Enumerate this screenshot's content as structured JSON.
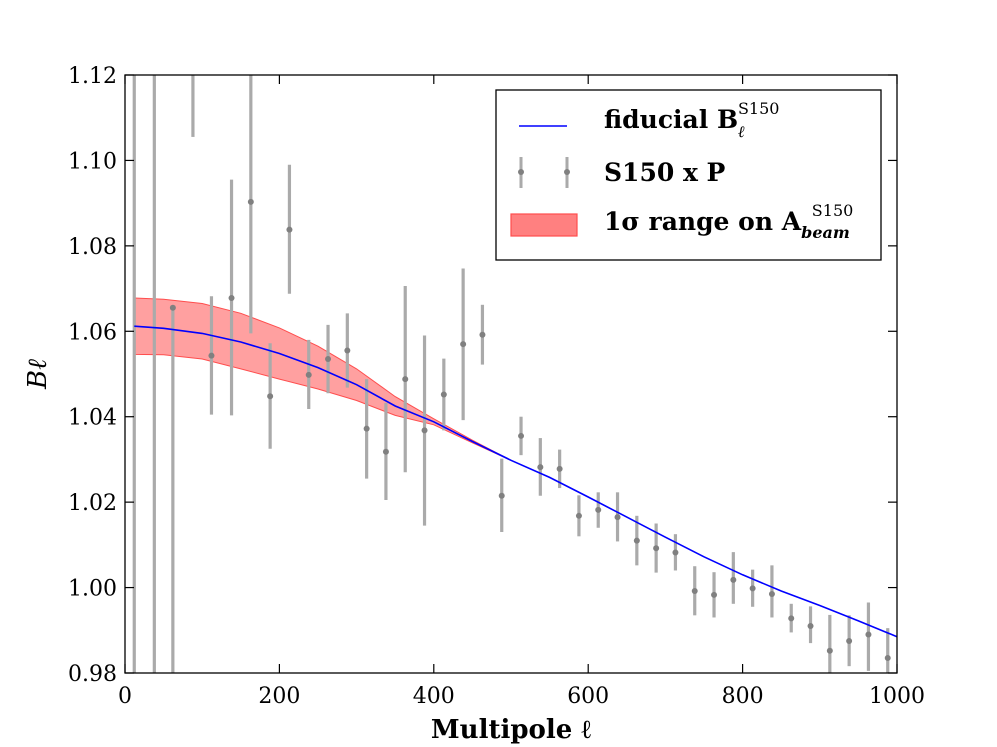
{
  "chart_data": {
    "type": "line",
    "xlabel": "Multipole ℓ",
    "ylabel": "Bℓ",
    "xlim": [
      0,
      1000
    ],
    "ylim": [
      0.98,
      1.12
    ],
    "xticks": [
      0,
      200,
      400,
      600,
      800,
      1000
    ],
    "xtick_labels": [
      "0",
      "200",
      "400",
      "600",
      "800",
      "1000"
    ],
    "yticks": [
      0.98,
      1.0,
      1.02,
      1.04,
      1.06,
      1.08,
      1.1,
      1.12
    ],
    "ytick_labels": [
      "0.98",
      "1.00",
      "1.02",
      "1.04",
      "1.06",
      "1.08",
      "1.10",
      "1.12"
    ],
    "grid": false,
    "legend_position": "top-right",
    "legend": {
      "fiducial": "fiducial B",
      "fiducial_sub": "ℓ",
      "fiducial_sup": "S150",
      "data": "S150 x P",
      "band": "1σ range on A",
      "band_sub": "beam",
      "band_sup": "S150"
    },
    "colors": {
      "fiducial": "#0000ff",
      "data": "#808080",
      "band_fill": "#ff8080",
      "band_edge": "#ff4d4d"
    },
    "fiducial": {
      "x": [
        12,
        50,
        100,
        150,
        200,
        250,
        300,
        350,
        400,
        450,
        500,
        550,
        600,
        650,
        700,
        750,
        800,
        850,
        900,
        950,
        1000
      ],
      "y": [
        1.0612,
        1.0607,
        1.0595,
        1.0575,
        1.0548,
        1.0515,
        1.0475,
        1.0425,
        1.0388,
        1.0342,
        1.0298,
        1.0258,
        1.0212,
        1.0165,
        1.0118,
        1.0072,
        1.003,
        0.9992,
        0.9958,
        0.9922,
        0.9885
      ]
    },
    "band": {
      "x": [
        12,
        50,
        100,
        150,
        200,
        250,
        300,
        350,
        400,
        450,
        500
      ],
      "upper": [
        1.0678,
        1.0675,
        1.0665,
        1.0642,
        1.0608,
        1.0565,
        1.0512,
        1.0447,
        1.0395,
        1.0345,
        1.0298
      ],
      "lower": [
        1.0546,
        1.0545,
        1.0535,
        1.0512,
        1.0488,
        1.0465,
        1.0438,
        1.0403,
        1.0381,
        1.0339,
        1.0298
      ]
    },
    "data_points": [
      {
        "x": 12,
        "y": 1.12,
        "lo": 0.98,
        "hi": 1.12
      },
      {
        "x": 38,
        "y": 1.12,
        "lo": 0.98,
        "hi": 1.12
      },
      {
        "x": 62,
        "y": 1.0655,
        "lo": 0.98,
        "hi": 1.0655
      },
      {
        "x": 88,
        "y": 1.12,
        "lo": 1.1055,
        "hi": 1.12
      },
      {
        "x": 112,
        "y": 1.0543,
        "lo": 1.0405,
        "hi": 1.0682
      },
      {
        "x": 138,
        "y": 1.0678,
        "lo": 1.0403,
        "hi": 1.0955
      },
      {
        "x": 163,
        "y": 1.0903,
        "lo": 1.0595,
        "hi": 1.12
      },
      {
        "x": 188,
        "y": 1.0448,
        "lo": 1.0325,
        "hi": 1.0572
      },
      {
        "x": 213,
        "y": 1.0838,
        "lo": 1.0688,
        "hi": 1.099
      },
      {
        "x": 238,
        "y": 1.0498,
        "lo": 1.0418,
        "hi": 1.058
      },
      {
        "x": 263,
        "y": 1.0535,
        "lo": 1.0455,
        "hi": 1.0615
      },
      {
        "x": 288,
        "y": 1.0555,
        "lo": 1.0468,
        "hi": 1.0642
      },
      {
        "x": 313,
        "y": 1.0372,
        "lo": 1.0255,
        "hi": 1.0488
      },
      {
        "x": 338,
        "y": 1.0318,
        "lo": 1.0205,
        "hi": 1.0432
      },
      {
        "x": 363,
        "y": 1.0488,
        "lo": 1.027,
        "hi": 1.0706
      },
      {
        "x": 388,
        "y": 1.0368,
        "lo": 1.0145,
        "hi": 1.059
      },
      {
        "x": 413,
        "y": 1.0452,
        "lo": 1.0368,
        "hi": 1.0536
      },
      {
        "x": 438,
        "y": 1.057,
        "lo": 1.0392,
        "hi": 1.0747
      },
      {
        "x": 463,
        "y": 1.0592,
        "lo": 1.0522,
        "hi": 1.0662
      },
      {
        "x": 488,
        "y": 1.0215,
        "lo": 1.013,
        "hi": 1.0302
      },
      {
        "x": 513,
        "y": 1.0355,
        "lo": 1.031,
        "hi": 1.04
      },
      {
        "x": 538,
        "y": 1.0282,
        "lo": 1.0215,
        "hi": 1.035
      },
      {
        "x": 563,
        "y": 1.0278,
        "lo": 1.0233,
        "hi": 1.0323
      },
      {
        "x": 588,
        "y": 1.0168,
        "lo": 1.012,
        "hi": 1.0216
      },
      {
        "x": 613,
        "y": 1.0182,
        "lo": 1.014,
        "hi": 1.0223
      },
      {
        "x": 638,
        "y": 1.0165,
        "lo": 1.0108,
        "hi": 1.0223
      },
      {
        "x": 663,
        "y": 1.011,
        "lo": 1.0052,
        "hi": 1.0168
      },
      {
        "x": 688,
        "y": 1.0092,
        "lo": 1.0035,
        "hi": 1.015
      },
      {
        "x": 713,
        "y": 1.0082,
        "lo": 1.004,
        "hi": 1.0125
      },
      {
        "x": 738,
        "y": 0.9992,
        "lo": 0.9935,
        "hi": 1.005
      },
      {
        "x": 763,
        "y": 0.9983,
        "lo": 0.993,
        "hi": 1.0036
      },
      {
        "x": 788,
        "y": 1.0018,
        "lo": 0.9962,
        "hi": 1.0083
      },
      {
        "x": 813,
        "y": 0.9998,
        "lo": 0.9955,
        "hi": 1.0042
      },
      {
        "x": 838,
        "y": 0.9985,
        "lo": 0.993,
        "hi": 1.0052
      },
      {
        "x": 863,
        "y": 0.9928,
        "lo": 0.9895,
        "hi": 0.9962
      },
      {
        "x": 888,
        "y": 0.991,
        "lo": 0.987,
        "hi": 0.9956
      },
      {
        "x": 913,
        "y": 0.9852,
        "lo": 0.9792,
        "hi": 0.9936
      },
      {
        "x": 938,
        "y": 0.9875,
        "lo": 0.9816,
        "hi": 0.9935
      },
      {
        "x": 963,
        "y": 0.989,
        "lo": 0.9805,
        "hi": 0.9965
      },
      {
        "x": 988,
        "y": 0.9835,
        "lo": 0.9792,
        "hi": 0.9905
      }
    ]
  }
}
